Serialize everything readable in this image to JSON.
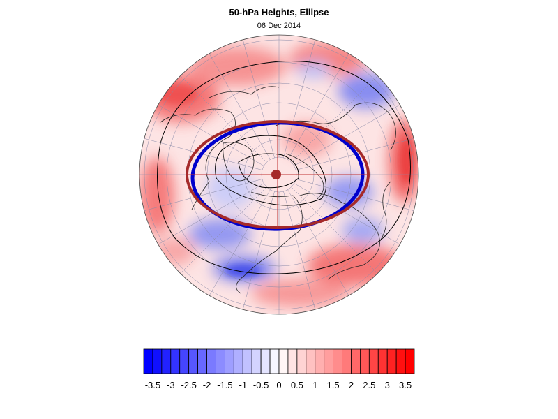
{
  "title": "50-hPa Heights, Ellipse",
  "subtitle": "06 Dec 2014",
  "colorbar": {
    "min": -3.75,
    "max": 3.75,
    "step": 0.25,
    "low_color": "#0000ff",
    "mid_color": "#ffffff",
    "high_color": "#ff0000",
    "tick_labels": [
      "-3.5",
      "-3",
      "-2.5",
      "-2",
      "-1.5",
      "-1",
      "-0.5",
      "0",
      "0.5",
      "1",
      "1.5",
      "2",
      "2.5",
      "3",
      "3.5"
    ]
  },
  "map": {
    "projection": "north-polar-stereographic",
    "ellipse_color": "#a52a2a",
    "contour_ellipse_color": "#0000cc",
    "anomaly_color_positive": "#ff0000",
    "anomaly_color_negative": "#0000ff"
  }
}
